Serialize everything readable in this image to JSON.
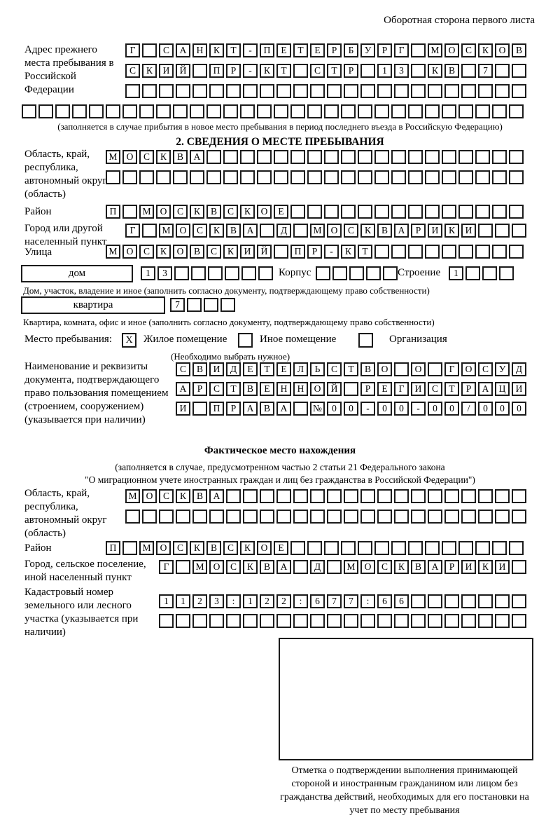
{
  "page": {
    "header_note": "Оборотная сторона первого листа"
  },
  "prev_address": {
    "label": "Адрес прежнего места пребывания в Российской Федерации",
    "row1": "Г САНКТ-ПЕТЕРБУРГ МОСКОВ",
    "row2": "СКИЙ ПР-КТ СТР 13 КВ 7",
    "row3": "",
    "row4": "",
    "caption": "(заполняется в случае прибытия в новое место пребывания в период последнего въезда в Российскую Федерацию)"
  },
  "section2": {
    "title": "2. СВЕДЕНИЯ О МЕСТЕ ПРЕБЫВАНИЯ",
    "region": {
      "label": "Область, край, республика, автономный округ (область)",
      "row1": "МОСКВА",
      "row2": ""
    },
    "district": {
      "label": "Район",
      "row": "П МОСКВСКОЕ"
    },
    "city": {
      "label": "Город или другой населенный пункт",
      "row": "Г МОСКВА Д МОСКВАРИКИ"
    },
    "street": {
      "label": "Улица",
      "row": "МОСКОВСКИЙ ПР-КТ"
    },
    "house": {
      "box_label": "дом",
      "cells": "13",
      "korpus_label": "Корпус",
      "korpus_cells": "",
      "stroenie_label": "Строение",
      "stroenie_cells": "1",
      "caption": "Дом, участок, владение и иное (заполнить согласно документу, подтверждающему право собственности)"
    },
    "apartment": {
      "box_label": "квартира",
      "cells": "7",
      "caption": "Квартира, комната, офис и иное (заполнить согласно документу, подтверждающему право собственности)"
    },
    "stay_type": {
      "label": "Место пребывания:",
      "mark1": "X",
      "option1": "Жилое помещение",
      "mark2": "",
      "option2": "Иное помещение",
      "mark3": "",
      "option3": "Организация",
      "hint": "(Необходимо выбрать нужное)"
    },
    "document": {
      "label": "Наименование и реквизиты документа, подтверждающего право пользования помещением (строением, сооружением) (указывается при наличии)",
      "row1": "СВИДЕТЕЛЬСТВО О ГОСУД",
      "row2": "АРСТВЕННОЙ РЕГИСТРАЦИ",
      "row3": "И ПРАВА №00-00-00/000"
    }
  },
  "actual_location": {
    "title": "Фактическое место нахождения",
    "caption_line1": "(заполняется в случае, предусмотренном частью 2 статьи 21 Федерального закона",
    "caption_line2": "\"О миграционном учете иностранных граждан и лиц без гражданства в Российской Федерации\")",
    "region": {
      "label": "Область, край, республика, автономный округ (область)",
      "row1": "МОСКВА",
      "row2": ""
    },
    "district": {
      "label": "Район",
      "row": "П МОСКВСКОЕ"
    },
    "city": {
      "label": "Город, сельское поселение, иной населенный пункт",
      "row": "Г МОСКВА Д МОСКВАРИКИ"
    },
    "cadastre": {
      "label": "Кадастровый номер земельного или лесного участка (указывается при наличии)",
      "row1": "1123:122:677:66",
      "row2": ""
    },
    "stamp_caption": "Отметка о подтверждении выполнения принимающей стороной и иностранным гражданином или лицом без гражданства действий, необходимых для его постановки на учет по месту пребывания"
  }
}
